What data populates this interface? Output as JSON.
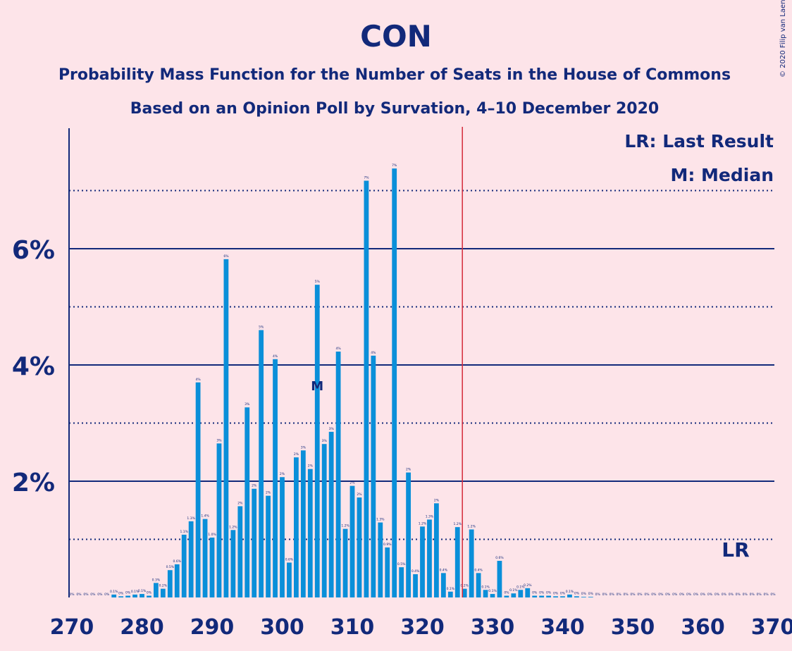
{
  "chart_data": {
    "type": "bar",
    "title": "CON",
    "subtitle1": "Probability Mass Function for the Number of Seats in the House of Commons",
    "subtitle2": "Based on an Opinion Poll by Survation, 4–10 December 2020",
    "credit": "© 2020 Filip van Laenen",
    "legend": [
      "LR: Last Result",
      "M: Median"
    ],
    "lr_label": "LR",
    "median_label": "M",
    "last_result": 326,
    "median": 305,
    "x_ticks": [
      270,
      280,
      290,
      300,
      310,
      320,
      330,
      340,
      350,
      360,
      370
    ],
    "y_ticks": [
      {
        "value": 2,
        "label": "2%"
      },
      {
        "value": 4,
        "label": "4%"
      },
      {
        "value": 6,
        "label": "6%"
      }
    ],
    "xlim": [
      270,
      370
    ],
    "ylim": [
      0,
      8
    ],
    "bar_color": "#0a8fd9",
    "lr_line_color": "#d42a3a",
    "text_color": "#12297a",
    "x": [
      270,
      271,
      272,
      273,
      274,
      275,
      276,
      277,
      278,
      279,
      280,
      281,
      282,
      283,
      284,
      285,
      286,
      287,
      288,
      289,
      290,
      291,
      292,
      293,
      294,
      295,
      296,
      297,
      298,
      299,
      300,
      301,
      302,
      303,
      304,
      305,
      306,
      307,
      308,
      309,
      310,
      311,
      312,
      313,
      314,
      315,
      316,
      317,
      318,
      319,
      320,
      321,
      322,
      323,
      324,
      325,
      326,
      327,
      328,
      329,
      330,
      331,
      332,
      333,
      334,
      335,
      336,
      337,
      338,
      339,
      340,
      341,
      342,
      343,
      344,
      345,
      346,
      347,
      348,
      349,
      350,
      351,
      352,
      353,
      354,
      355,
      356,
      357,
      358,
      359,
      360,
      361,
      362,
      363,
      364,
      365,
      366,
      367,
      368,
      369,
      370
    ],
    "values": [
      0,
      0,
      0,
      0,
      0,
      0,
      0.05,
      0.02,
      0.03,
      0.05,
      0.06,
      0.03,
      0.25,
      0.15,
      0.47,
      0.57,
      1.08,
      1.31,
      3.7,
      1.35,
      1.03,
      2.65,
      5.82,
      1.16,
      1.57,
      3.27,
      1.87,
      4.6,
      1.75,
      4.1,
      2.07,
      0.6,
      2.41,
      2.53,
      2.21,
      5.38,
      2.64,
      2.85,
      4.23,
      1.18,
      1.92,
      1.72,
      7.17,
      4.16,
      1.29,
      0.86,
      7.38,
      0.52,
      2.15,
      0.4,
      1.22,
      1.34,
      1.62,
      0.42,
      0.1,
      1.21,
      0.15,
      1.17,
      0.42,
      0.13,
      0.06,
      0.63,
      0.03,
      0.07,
      0.13,
      0.16,
      0.03,
      0.03,
      0.03,
      0.02,
      0.02,
      0.05,
      0.02,
      0.01,
      0.01,
      0,
      0,
      0,
      0,
      0,
      0,
      0,
      0,
      0,
      0,
      0,
      0,
      0,
      0,
      0,
      0,
      0,
      0,
      0,
      0,
      0,
      0,
      0,
      0,
      0,
      0
    ],
    "data_labels": [
      "0%",
      "0%",
      "0%",
      "0%",
      "0%",
      "0%",
      "0.1%",
      "0%",
      "0%",
      "0.1%",
      "0.1%",
      "0%",
      "0.3%",
      "0.2%",
      "0.5%",
      "0.6%",
      "1.1%",
      "1.3%",
      "4%",
      "1.4%",
      "1.0%",
      "3%",
      "6%",
      "1.2%",
      "2%",
      "3%",
      "2%",
      "5%",
      "2%",
      "4%",
      "2%",
      "0.6%",
      "2%",
      "3%",
      "2%",
      "5%",
      "3%",
      "3%",
      "4%",
      "1.2%",
      "2%",
      "2%",
      "7%",
      "4%",
      "1.3%",
      "0.9%",
      "7%",
      "0.5%",
      "2%",
      "0.4%",
      "1.2%",
      "1.3%",
      "2%",
      "0.4%",
      "0.1%",
      "1.2%",
      "0.2%",
      "1.2%",
      "0.4%",
      "0.1%",
      "0.1%",
      "0.6%",
      "0%",
      "0.1%",
      "0.1%",
      "0.2%",
      "0%",
      "0%",
      "0%",
      "0%",
      "0%",
      "0.1%",
      "0%",
      "0%",
      "0%",
      "0%",
      "0%",
      "0%",
      "0%",
      "0%",
      "0%",
      "0%",
      "0%",
      "0%",
      "0%",
      "0%",
      "0%",
      "0%",
      "0%",
      "0%",
      "0%",
      "0%",
      "0%",
      "0%",
      "0%",
      "0%",
      "0%",
      "0%",
      "0%",
      "0%",
      "0%"
    ]
  }
}
